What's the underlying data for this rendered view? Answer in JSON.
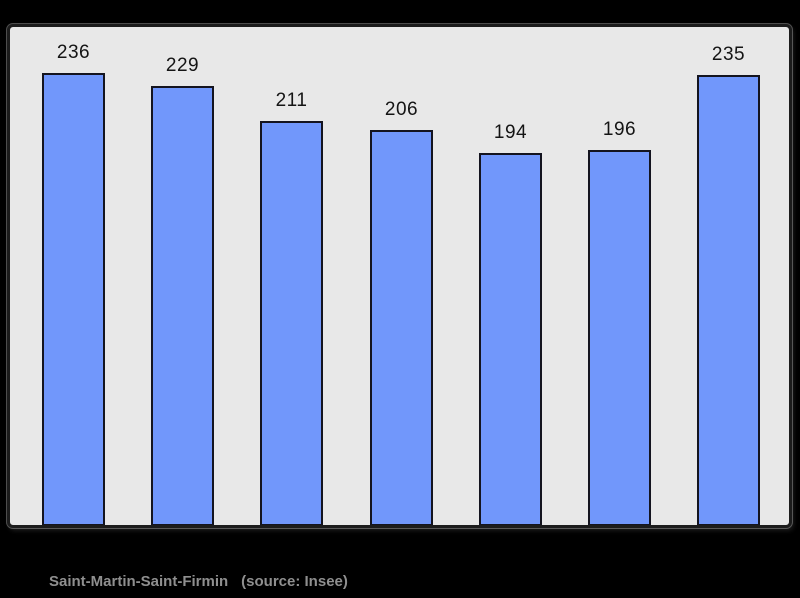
{
  "chart_data": {
    "type": "bar",
    "categories": [
      "",
      "",
      "",
      "",
      "",
      "",
      ""
    ],
    "values": [
      236,
      229,
      211,
      206,
      194,
      196,
      235
    ],
    "value_labels": [
      "236",
      "229",
      "211",
      "206",
      "194",
      "196",
      "235"
    ],
    "title": "",
    "xlabel": "",
    "ylabel": "",
    "ylim": [
      0,
      236
    ],
    "grid": false,
    "legend": "none",
    "value_labels_shown": true,
    "bar_color": "#7197fb",
    "bar_border_color": "#14141f",
    "plot_background": "#e8e8e8",
    "plot_border_color": "#1c1c1c",
    "page_background": "#000000",
    "label_color": "#141414"
  },
  "caption": {
    "name": "Saint-Martin-Saint-Firmin",
    "source": "(source: Insee)",
    "color": "#8f8f8f"
  }
}
